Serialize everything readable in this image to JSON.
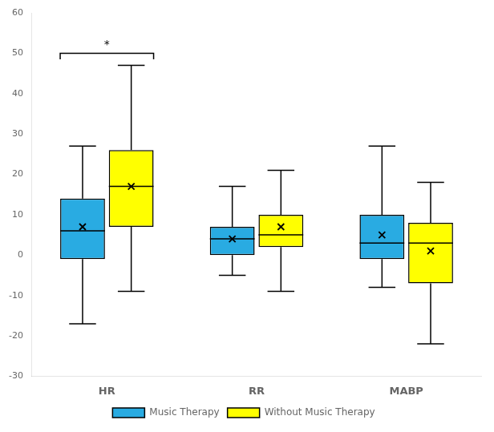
{
  "chart_data": {
    "type": "box",
    "categories": [
      "HR",
      "RR",
      "MABP"
    ],
    "series": [
      {
        "name": "Music Therapy",
        "color": "#29ABE2",
        "values": [
          {
            "whisker_low": -17,
            "q1": -1,
            "median": 6,
            "q3": 14,
            "whisker_high": 27,
            "mean": 7
          },
          {
            "whisker_low": -5,
            "q1": 0,
            "median": 4,
            "q3": 7,
            "whisker_high": 17,
            "mean": 4
          },
          {
            "whisker_low": -8,
            "q1": -1,
            "median": 3,
            "q3": 10,
            "whisker_high": 27,
            "mean": 5
          }
        ]
      },
      {
        "name": "Without Music Therapy",
        "color": "#FFFF00",
        "values": [
          {
            "whisker_low": -9,
            "q1": 7,
            "median": 17,
            "q3": 26,
            "whisker_high": 47,
            "mean": 17
          },
          {
            "whisker_low": -9,
            "q1": 2,
            "median": 5,
            "q3": 10,
            "whisker_high": 21,
            "mean": 7
          },
          {
            "whisker_low": -22,
            "q1": -7,
            "median": 3,
            "q3": 8,
            "whisker_high": 18,
            "mean": 1
          }
        ]
      }
    ],
    "annotations": [
      {
        "text": "*",
        "category": "HR",
        "y": 50
      }
    ],
    "ylim": [
      -30,
      60
    ],
    "yticks": [
      -30,
      -20,
      -10,
      0,
      10,
      20,
      30,
      40,
      50,
      60
    ],
    "grid": false,
    "legend": "bottom"
  }
}
